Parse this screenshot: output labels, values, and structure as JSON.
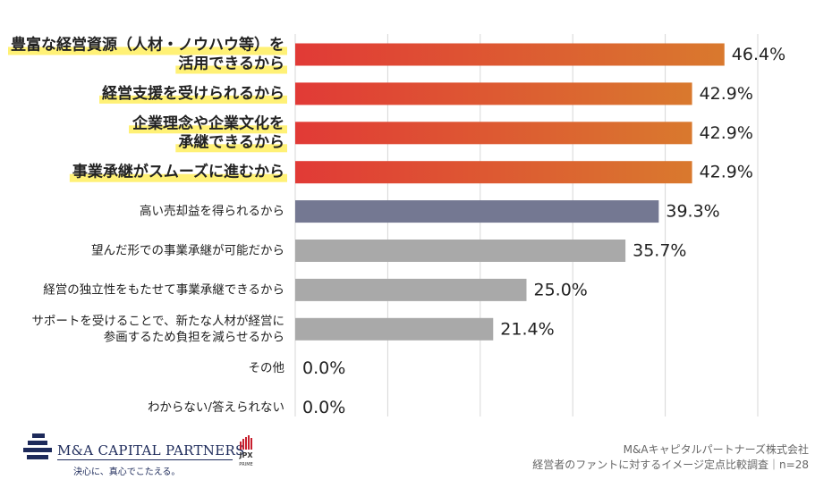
{
  "chart_data": {
    "type": "bar",
    "orientation": "horizontal",
    "categories": [
      "豊富な経営資源（人材・ノウハウ等）を\n活用できるから",
      "経営支援を受けられるから",
      "企業理念や企業文化を\n承継できるから",
      "事業承継がスムーズに進むから",
      "高い売却益を得られるから",
      "望んだ形での事業承継が可能だから",
      "経営の独立性をもたせて事業承継できるから",
      "サポートを受けることで、新たな人材が経営に\n参画するため負担を減らせるから",
      "その他",
      "わからない/答えられない"
    ],
    "values": [
      46.4,
      42.9,
      42.9,
      42.9,
      39.3,
      35.7,
      25.0,
      21.4,
      0.0,
      0.0
    ],
    "value_labels": [
      "46.4%",
      "42.9%",
      "42.9%",
      "42.9%",
      "39.3%",
      "35.7%",
      "25.0%",
      "21.4%",
      "0.0%",
      "0.0%"
    ],
    "highlighted": [
      true,
      true,
      true,
      true,
      false,
      false,
      false,
      false,
      false,
      false
    ],
    "bar_kind": [
      "accent",
      "accent",
      "accent",
      "accent",
      "secondary",
      "neutral",
      "neutral",
      "neutral",
      "neutral",
      "neutral"
    ],
    "xlim": [
      0,
      50
    ],
    "grid": true,
    "unit": "%"
  },
  "colors": {
    "accent_start": "#e13a36",
    "accent_end": "#d9792e",
    "secondary": "#747892",
    "neutral": "#a9a9a9",
    "highlight": "#fff176",
    "grid": "#d7d7d7",
    "text": "#222222"
  },
  "footer": {
    "brand": "M&A CAPITAL PARTNERS",
    "tagline": "決心に、真心でこたえる。",
    "jpx_label": "JPX",
    "jpx_sub": "PRIME",
    "company": "M&Aキャピタルパートナーズ株式会社",
    "survey": "経営者のファントに対するイメージ定点比較調査｜n=28"
  },
  "icons": {
    "brand_logo": "mcap-logo-icon",
    "jpx_logo": "jpx-prime-icon"
  }
}
